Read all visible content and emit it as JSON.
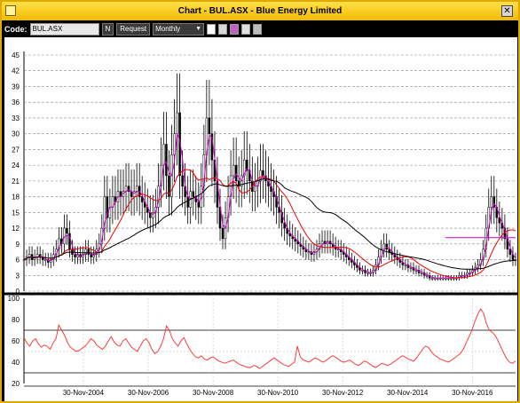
{
  "window": {
    "title": "Chart - BUL.ASX - Blue Energy Limited",
    "close_glyph": "✕"
  },
  "toolbar": {
    "code_label": "Code:",
    "code_value": "BUL.ASX",
    "n_button": "N",
    "request_button": "Request",
    "period": "Monthly",
    "icons": [
      "chart-style-icon",
      "page-icon",
      "color-icon",
      "zoom-icon",
      "tools-icon"
    ]
  },
  "colors": {
    "price": "#000000",
    "ma_short": "#cc00cc",
    "ma_mid": "#ee0000",
    "ma_long": "#000000",
    "indicator": "#ff2a2a",
    "hline": "#cc00cc",
    "title_bar": "#f5c400"
  },
  "chart_data": [
    {
      "type": "candlestick",
      "title": "",
      "ylim": [
        0,
        45
      ],
      "yticks": [
        0,
        3,
        6,
        9,
        12,
        15,
        18,
        21,
        24,
        27,
        30,
        33,
        36,
        39,
        42,
        45
      ],
      "x_start": "2003-01",
      "x_end": "2018-03",
      "close": [
        6,
        6.5,
        7,
        6,
        6.5,
        7,
        6.5,
        6,
        6,
        5.5,
        6,
        7,
        8,
        10,
        9,
        12,
        11,
        8,
        7,
        6.5,
        7,
        6.5,
        7,
        8,
        7,
        6.5,
        7,
        8,
        9,
        12,
        18,
        14,
        16,
        18,
        17,
        19,
        18,
        19,
        20,
        19,
        18,
        19,
        20,
        18,
        17,
        16,
        15,
        14,
        15,
        16,
        20,
        24,
        28,
        22,
        18,
        26,
        30,
        34,
        22,
        20,
        18,
        16,
        19,
        18,
        17,
        16,
        20,
        26,
        33,
        30,
        25,
        21,
        16,
        12,
        10,
        14,
        18,
        22,
        24,
        21,
        20,
        22,
        25,
        23,
        21,
        19,
        20,
        21,
        23,
        22,
        21,
        20,
        19,
        18,
        16,
        15,
        13,
        12,
        11,
        10.5,
        10,
        9.5,
        9,
        8.5,
        8,
        7.5,
        7.5,
        7,
        7.5,
        8,
        9,
        9.5,
        9,
        9.5,
        9,
        8.5,
        8,
        8,
        7.5,
        7,
        6.5,
        6,
        5.5,
        5,
        4.5,
        4,
        4,
        3.5,
        3.5,
        3.5,
        4,
        5,
        6.5,
        8,
        9,
        8,
        7.5,
        7,
        6.5,
        6,
        5.5,
        5,
        5,
        4.5,
        4.5,
        4,
        4,
        3.5,
        3.5,
        3,
        3,
        2.5,
        2.5,
        2.5,
        2.5,
        2.5,
        2.5,
        2.5,
        2.5,
        2.5,
        2.5,
        2.5,
        3,
        3,
        3,
        3.5,
        3.5,
        4,
        4.5,
        5,
        6,
        8,
        12,
        16,
        18,
        16,
        14,
        13,
        12,
        10,
        8,
        7,
        6,
        6
      ],
      "moving_averages": [
        {
          "color": "#cc00cc",
          "period": 3
        },
        {
          "color": "#ee0000",
          "period": 12
        },
        {
          "color": "#000000",
          "period": 40
        }
      ],
      "hline": {
        "value": 10.2,
        "from": "2016-01",
        "to": "2018-03"
      },
      "xlabels": [
        "30-Nov-2004",
        "30-Nov-2006",
        "30-Nov-2008",
        "30-Nov-2010",
        "30-Nov-2012",
        "30-Nov-2014",
        "30-Nov-2016"
      ]
    },
    {
      "type": "line",
      "title": "",
      "ylim": [
        20,
        100
      ],
      "yticks": [
        20,
        40,
        60,
        80,
        100
      ],
      "hlines": [
        30,
        70
      ],
      "values": [
        63,
        58,
        55,
        60,
        62,
        57,
        54,
        56,
        55,
        52,
        58,
        62,
        75,
        70,
        65,
        58,
        54,
        52,
        50,
        51,
        53,
        55,
        58,
        62,
        60,
        56,
        54,
        52,
        55,
        60,
        64,
        59,
        56,
        55,
        60,
        62,
        58,
        54,
        52,
        50,
        55,
        60,
        62,
        58,
        52,
        48,
        50,
        55,
        62,
        74,
        70,
        62,
        58,
        55,
        60,
        63,
        57,
        52,
        48,
        45,
        44,
        46,
        43,
        42,
        44,
        45,
        43,
        41,
        40,
        39,
        40,
        41,
        42,
        40,
        38,
        37,
        36,
        35,
        35,
        37,
        36,
        34,
        36,
        38,
        40,
        42,
        44,
        42,
        40,
        38,
        37,
        36,
        38,
        40,
        55,
        45,
        42,
        41,
        40,
        42,
        44,
        43,
        41,
        40,
        42,
        44,
        46,
        45,
        43,
        41,
        40,
        41,
        42,
        40,
        38,
        37,
        39,
        41,
        40,
        38,
        36,
        35,
        37,
        39,
        38,
        37,
        38,
        40,
        42,
        44,
        46,
        45,
        43,
        42,
        41,
        44,
        48,
        52,
        55,
        54,
        50,
        47,
        45,
        43,
        42,
        41,
        40,
        42,
        44,
        46,
        48,
        52,
        58,
        64,
        70,
        78,
        85,
        90,
        86,
        76,
        70,
        68,
        65,
        60,
        54,
        48,
        43,
        40,
        39,
        41
      ],
      "xlabels": [
        "30-Nov-2004",
        "30-Nov-2006",
        "30-Nov-2008",
        "30-Nov-2010",
        "30-Nov-2012",
        "30-Nov-2014",
        "30-Nov-2016"
      ]
    }
  ]
}
